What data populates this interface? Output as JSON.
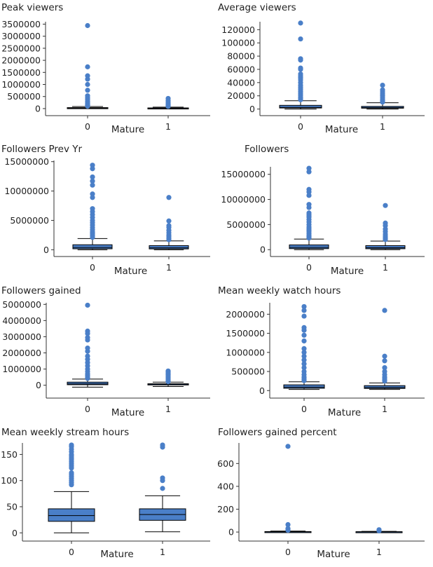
{
  "colors": {
    "box_fill": "#4a7fc8",
    "outlier": "#4a7fc8",
    "axis": "#333333",
    "text": "#222222"
  },
  "chart_data": [
    {
      "type": "box",
      "title": "Peak viewers",
      "xlabel": "Mature",
      "categories": [
        "0",
        "1"
      ],
      "yticks": [
        0,
        500000,
        1000000,
        1500000,
        2000000,
        2500000,
        3000000,
        3500000
      ],
      "ylim": [
        -60000,
        3600000
      ],
      "boxes": [
        {
          "category": "0",
          "q1": 12000,
          "median": 20000,
          "q3": 40000,
          "whisker_low": 500,
          "whisker_high": 85000,
          "outliers": [
            3440000,
            1730000,
            1360000,
            1220000,
            1000000,
            760000,
            530000,
            450000,
            380000,
            300000,
            260000,
            220000,
            190000,
            160000,
            140000,
            120000,
            100000
          ]
        },
        {
          "category": "1",
          "q1": 9000,
          "median": 15000,
          "q3": 28000,
          "whisker_low": 500,
          "whisker_high": 60000,
          "outliers": [
            420000,
            330000,
            260000,
            200000,
            160000,
            120000,
            90000
          ]
        }
      ]
    },
    {
      "type": "box",
      "title": "Average viewers",
      "xlabel": "Mature",
      "categories": [
        "0",
        "1"
      ],
      "yticks": [
        0,
        20000,
        40000,
        60000,
        80000,
        100000,
        120000
      ],
      "ylim": [
        -1500,
        132000
      ],
      "boxes": [
        {
          "category": "0",
          "q1": 1600,
          "median": 2500,
          "q3": 5600,
          "whisker_low": 0,
          "whisker_high": 12500,
          "outliers": [
            130000,
            106000,
            76000,
            74000,
            62000,
            60000,
            53000,
            50000,
            47000,
            44000,
            40000,
            36000,
            33000,
            30000,
            27000,
            24000,
            21000,
            18000,
            16000,
            14000
          ]
        },
        {
          "category": "1",
          "q1": 1300,
          "median": 2100,
          "q3": 4000,
          "whisker_low": 0,
          "whisker_high": 9500,
          "outliers": [
            36000,
            29000,
            26000,
            23000,
            20000,
            17000,
            14000,
            12000,
            10500
          ]
        }
      ]
    },
    {
      "type": "box",
      "title": "Followers Prev Yr",
      "xlabel": "Mature",
      "categories": [
        "0",
        "1"
      ],
      "yticks": [
        0,
        5000000,
        10000000,
        15000000
      ],
      "ylim": [
        -200000,
        15200000
      ],
      "boxes": [
        {
          "category": "0",
          "q1": 160000,
          "median": 380000,
          "q3": 850000,
          "whisker_low": 0,
          "whisker_high": 1900000,
          "outliers": [
            14400000,
            13800000,
            12400000,
            11700000,
            11000000,
            9500000,
            8900000,
            7000000,
            6500000,
            6000000,
            5500000,
            5000000,
            4600000,
            4200000,
            3800000,
            3400000,
            3000000,
            2700000,
            2400000,
            2100000
          ]
        },
        {
          "category": "1",
          "q1": 140000,
          "median": 320000,
          "q3": 700000,
          "whisker_low": 0,
          "whisker_high": 1500000,
          "outliers": [
            8900000,
            4900000,
            4100000,
            3800000,
            3300000,
            2900000,
            2500000,
            2200000,
            1900000,
            1700000
          ]
        }
      ]
    },
    {
      "type": "box",
      "title": "Followers",
      "xlabel": "Mature",
      "categories": [
        "0",
        "1"
      ],
      "yticks": [
        0,
        5000000,
        10000000,
        15000000
      ],
      "ylim": [
        -250000,
        16500000
      ],
      "boxes": [
        {
          "category": "0",
          "q1": 200000,
          "median": 450000,
          "q3": 950000,
          "whisker_low": 0,
          "whisker_high": 2100000,
          "outliers": [
            16200000,
            15500000,
            12000000,
            11500000,
            10800000,
            9000000,
            8400000,
            7300000,
            6900000,
            6500000,
            6000000,
            5500000,
            5000000,
            4500000,
            4100000,
            3700000,
            3300000,
            2900000,
            2600000,
            2300000
          ]
        },
        {
          "category": "1",
          "q1": 180000,
          "median": 370000,
          "q3": 800000,
          "whisker_low": 0,
          "whisker_high": 1700000,
          "outliers": [
            8800000,
            5300000,
            4800000,
            4100000,
            3600000,
            3100000,
            2700000,
            2300000,
            2000000
          ]
        }
      ]
    },
    {
      "type": "box",
      "title": "Followers gained",
      "xlabel": "Mature",
      "categories": [
        "0",
        "1"
      ],
      "yticks": [
        0,
        1000000,
        2000000,
        3000000,
        4000000,
        5000000
      ],
      "ylim": [
        -450000,
        5100000
      ],
      "boxes": [
        {
          "category": "0",
          "q1": 30000,
          "median": 80000,
          "q3": 190000,
          "whisker_low": -120000,
          "whisker_high": 380000,
          "outliers": [
            4950000,
            3350000,
            3200000,
            2950000,
            2800000,
            2300000,
            2100000,
            1800000,
            1600000,
            1400000,
            1200000,
            1000000,
            850000,
            700000,
            600000,
            500000,
            420000
          ]
        },
        {
          "category": "1",
          "q1": 15000,
          "median": 40000,
          "q3": 90000,
          "whisker_low": -80000,
          "whisker_high": 190000,
          "outliers": [
            880000,
            830000,
            750000,
            650000,
            550000,
            450000,
            350000,
            270000,
            220000
          ]
        }
      ]
    },
    {
      "type": "box",
      "title": "Mean weekly watch hours",
      "xlabel": "Mature",
      "categories": [
        "0",
        "1"
      ],
      "yticks": [
        0,
        500000,
        1000000,
        1500000,
        2000000
      ],
      "ylim": [
        -50000,
        2300000
      ],
      "boxes": [
        {
          "category": "0",
          "q1": 60000,
          "median": 90000,
          "q3": 150000,
          "whisker_low": 30000,
          "whisker_high": 230000,
          "outliers": [
            2200000,
            2100000,
            1950000,
            1650000,
            1580000,
            1450000,
            1300000,
            1100000,
            1000000,
            900000,
            800000,
            700000,
            600000,
            500000,
            420000,
            350000,
            300000,
            260000
          ]
        },
        {
          "category": "1",
          "q1": 55000,
          "median": 80000,
          "q3": 130000,
          "whisker_low": 30000,
          "whisker_high": 200000,
          "outliers": [
            2100000,
            900000,
            780000,
            600000,
            500000,
            420000,
            350000,
            300000,
            250000
          ]
        }
      ]
    },
    {
      "type": "box",
      "title": "Mean weekly stream hours",
      "xlabel": "Mature",
      "categories": [
        "0",
        "1"
      ],
      "yticks": [
        0,
        50,
        100,
        150
      ],
      "ylim": [
        -5,
        172
      ],
      "boxes": [
        {
          "category": "0",
          "q1": 22,
          "median": 33,
          "q3": 46,
          "whisker_low": 0,
          "whisker_high": 79,
          "outliers": [
            168,
            165,
            160,
            155,
            150,
            147,
            143,
            140,
            136,
            132,
            128,
            124,
            115,
            112,
            108,
            104,
            100,
            96,
            92
          ]
        },
        {
          "category": "1",
          "q1": 24,
          "median": 35,
          "q3": 46,
          "whisker_low": 2,
          "whisker_high": 71,
          "outliers": [
            168,
            164,
            105,
            100,
            85
          ]
        }
      ]
    },
    {
      "type": "box",
      "title": "Followers gained percent",
      "xlabel": "Mature",
      "categories": [
        "0",
        "1"
      ],
      "yticks": [
        0,
        200,
        400,
        600
      ],
      "ylim": [
        -30,
        780
      ],
      "boxes": [
        {
          "category": "0",
          "q1": 1,
          "median": 2,
          "q3": 4,
          "whisker_low": 0,
          "whisker_high": 8,
          "outliers": [
            750,
            65,
            30,
            15
          ]
        },
        {
          "category": "1",
          "q1": 1,
          "median": 2,
          "q3": 3,
          "whisker_low": 0,
          "whisker_high": 6,
          "outliers": [
            20,
            10
          ]
        }
      ]
    }
  ]
}
